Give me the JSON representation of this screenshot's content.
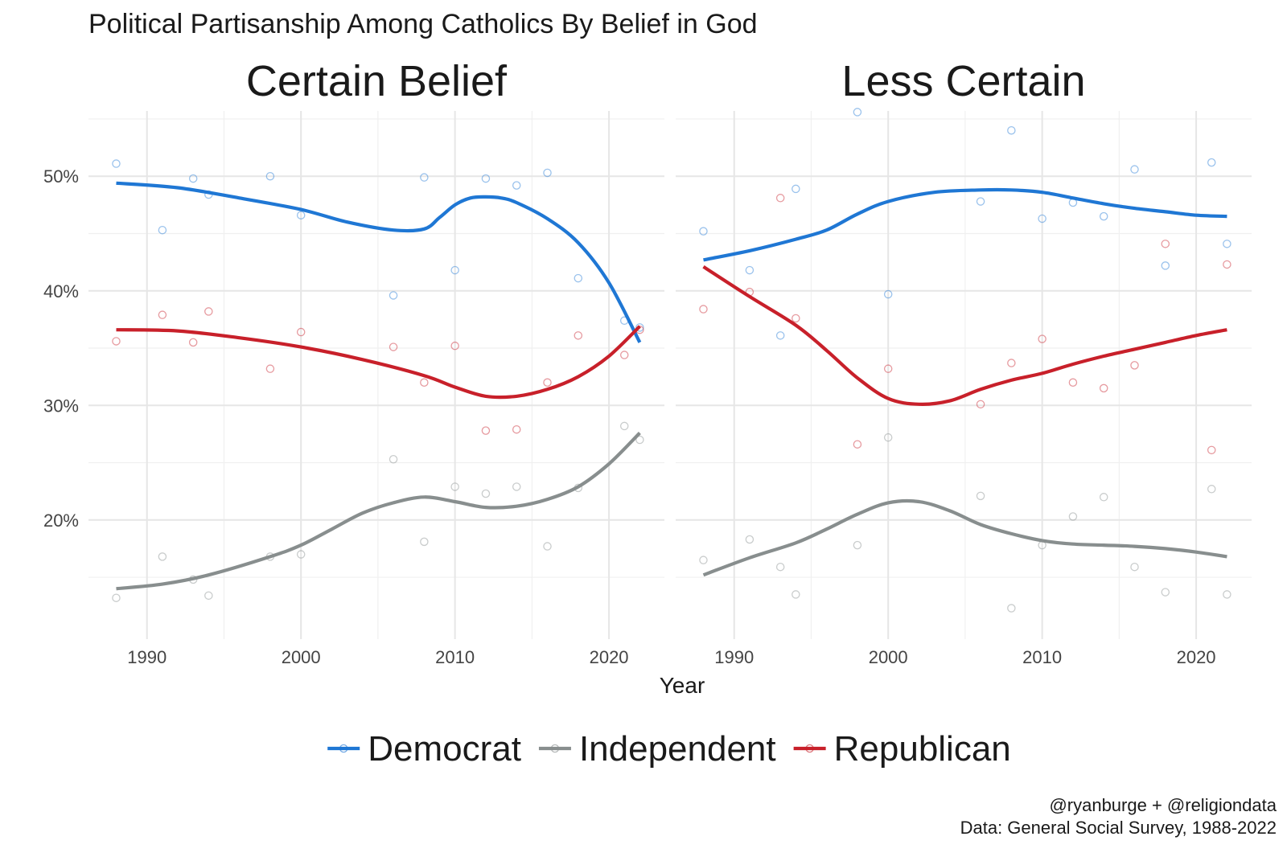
{
  "chart_data": {
    "type": "line",
    "title": "Political Partisanship Among Catholics By Belief in God",
    "xlabel": "Year",
    "ylabel": "",
    "xlim": [
      1986.2,
      2023.6
    ],
    "ylim": [
      9.6,
      55.7
    ],
    "x_ticks": [
      1990,
      2000,
      2010,
      2020
    ],
    "x_tick_labels": [
      "1990",
      "2000",
      "2010",
      "2020"
    ],
    "y_ticks": [
      20,
      30,
      40,
      50
    ],
    "y_tick_labels": [
      "20%",
      "30%",
      "40%",
      "50%"
    ],
    "legend": {
      "position": "bottom",
      "items": [
        {
          "name": "Democrat",
          "color": "#1f77d4"
        },
        {
          "name": "Independent",
          "color": "#888e8e"
        },
        {
          "name": "Republican",
          "color": "#c8202a"
        }
      ]
    },
    "caption": [
      "@ryanburge + @religiondata",
      "Data: General Social Survey, 1988-2022"
    ],
    "panels": [
      {
        "title": "Certain Belief",
        "series": [
          {
            "name": "Democrat",
            "color": "#1f77d4",
            "points": [
              [
                1988,
                51.1
              ],
              [
                1991,
                45.3
              ],
              [
                1993,
                49.8
              ],
              [
                1994,
                48.4
              ],
              [
                1998,
                50.0
              ],
              [
                2000,
                46.6
              ],
              [
                2006,
                39.6
              ],
              [
                2008,
                49.9
              ],
              [
                2010,
                41.8
              ],
              [
                2012,
                49.8
              ],
              [
                2014,
                49.2
              ],
              [
                2016,
                50.3
              ],
              [
                2018,
                41.1
              ],
              [
                2021,
                37.4
              ],
              [
                2022,
                36.8
              ]
            ],
            "trend": [
              [
                1988,
                49.4
              ],
              [
                1992,
                49.0
              ],
              [
                1996,
                48.1
              ],
              [
                2000,
                47.1
              ],
              [
                2003,
                46.0
              ],
              [
                2006,
                45.3
              ],
              [
                2008,
                45.4
              ],
              [
                2009,
                46.4
              ],
              [
                2010,
                47.5
              ],
              [
                2011,
                48.1
              ],
              [
                2012,
                48.2
              ],
              [
                2013,
                48.1
              ],
              [
                2014,
                47.7
              ],
              [
                2016,
                46.3
              ],
              [
                2018,
                44.2
              ],
              [
                2020,
                40.7
              ],
              [
                2022,
                35.5
              ]
            ]
          },
          {
            "name": "Republican",
            "color": "#c8202a",
            "points": [
              [
                1988,
                35.6
              ],
              [
                1991,
                37.9
              ],
              [
                1993,
                35.5
              ],
              [
                1994,
                38.2
              ],
              [
                1998,
                33.2
              ],
              [
                2000,
                36.4
              ],
              [
                2006,
                35.1
              ],
              [
                2008,
                32.0
              ],
              [
                2010,
                35.2
              ],
              [
                2012,
                27.8
              ],
              [
                2014,
                27.9
              ],
              [
                2016,
                32.0
              ],
              [
                2018,
                36.1
              ],
              [
                2021,
                34.4
              ],
              [
                2022,
                36.6
              ]
            ],
            "trend": [
              [
                1988,
                36.6
              ],
              [
                1992,
                36.5
              ],
              [
                1996,
                35.9
              ],
              [
                2000,
                35.1
              ],
              [
                2004,
                34.0
              ],
              [
                2008,
                32.6
              ],
              [
                2010,
                31.6
              ],
              [
                2012,
                30.8
              ],
              [
                2014,
                30.8
              ],
              [
                2016,
                31.4
              ],
              [
                2018,
                32.5
              ],
              [
                2020,
                34.3
              ],
              [
                2022,
                36.9
              ]
            ]
          },
          {
            "name": "Independent",
            "color": "#888e8e",
            "points": [
              [
                1988,
                13.2
              ],
              [
                1991,
                16.8
              ],
              [
                1993,
                14.8
              ],
              [
                1994,
                13.4
              ],
              [
                1998,
                16.8
              ],
              [
                2000,
                17.0
              ],
              [
                2006,
                25.3
              ],
              [
                2008,
                18.1
              ],
              [
                2010,
                22.9
              ],
              [
                2012,
                22.3
              ],
              [
                2014,
                22.9
              ],
              [
                2016,
                17.7
              ],
              [
                2018,
                22.8
              ],
              [
                2021,
                28.2
              ],
              [
                2022,
                27.0
              ]
            ],
            "trend": [
              [
                1988,
                14.0
              ],
              [
                1991,
                14.4
              ],
              [
                1994,
                15.2
              ],
              [
                1998,
                16.8
              ],
              [
                2000,
                17.8
              ],
              [
                2002,
                19.2
              ],
              [
                2004,
                20.6
              ],
              [
                2006,
                21.5
              ],
              [
                2008,
                22.0
              ],
              [
                2010,
                21.6
              ],
              [
                2012,
                21.1
              ],
              [
                2014,
                21.2
              ],
              [
                2016,
                21.8
              ],
              [
                2018,
                22.9
              ],
              [
                2020,
                24.9
              ],
              [
                2022,
                27.6
              ]
            ]
          }
        ]
      },
      {
        "title": "Less Certain",
        "series": [
          {
            "name": "Democrat",
            "color": "#1f77d4",
            "points": [
              [
                1988,
                45.2
              ],
              [
                1991,
                41.8
              ],
              [
                1993,
                36.1
              ],
              [
                1994,
                48.9
              ],
              [
                1998,
                55.6
              ],
              [
                2000,
                39.7
              ],
              [
                2006,
                47.8
              ],
              [
                2008,
                54.0
              ],
              [
                2010,
                46.3
              ],
              [
                2012,
                47.7
              ],
              [
                2014,
                46.5
              ],
              [
                2016,
                50.6
              ],
              [
                2018,
                42.2
              ],
              [
                2021,
                51.2
              ],
              [
                2022,
                44.1
              ]
            ],
            "trend": [
              [
                1988,
                42.7
              ],
              [
                1991,
                43.5
              ],
              [
                1994,
                44.5
              ],
              [
                1996,
                45.3
              ],
              [
                1998,
                46.7
              ],
              [
                2000,
                47.8
              ],
              [
                2003,
                48.6
              ],
              [
                2006,
                48.8
              ],
              [
                2008,
                48.8
              ],
              [
                2010,
                48.6
              ],
              [
                2012,
                48.1
              ],
              [
                2014,
                47.6
              ],
              [
                2016,
                47.2
              ],
              [
                2018,
                46.9
              ],
              [
                2020,
                46.6
              ],
              [
                2022,
                46.5
              ]
            ]
          },
          {
            "name": "Republican",
            "color": "#c8202a",
            "points": [
              [
                1988,
                38.4
              ],
              [
                1991,
                39.9
              ],
              [
                1993,
                48.1
              ],
              [
                1994,
                37.6
              ],
              [
                1998,
                26.6
              ],
              [
                2000,
                33.2
              ],
              [
                2006,
                30.1
              ],
              [
                2008,
                33.7
              ],
              [
                2010,
                35.8
              ],
              [
                2012,
                32.0
              ],
              [
                2014,
                31.5
              ],
              [
                2016,
                33.5
              ],
              [
                2018,
                44.1
              ],
              [
                2021,
                26.1
              ],
              [
                2022,
                42.3
              ]
            ],
            "trend": [
              [
                1988,
                42.1
              ],
              [
                1991,
                39.5
              ],
              [
                1994,
                37.0
              ],
              [
                1996,
                34.8
              ],
              [
                1998,
                32.4
              ],
              [
                2000,
                30.6
              ],
              [
                2002,
                30.1
              ],
              [
                2004,
                30.4
              ],
              [
                2006,
                31.4
              ],
              [
                2008,
                32.2
              ],
              [
                2010,
                32.8
              ],
              [
                2012,
                33.6
              ],
              [
                2014,
                34.3
              ],
              [
                2016,
                34.9
              ],
              [
                2018,
                35.5
              ],
              [
                2020,
                36.1
              ],
              [
                2022,
                36.6
              ]
            ]
          },
          {
            "name": "Independent",
            "color": "#888e8e",
            "points": [
              [
                1988,
                16.5
              ],
              [
                1991,
                18.3
              ],
              [
                1993,
                15.9
              ],
              [
                1994,
                13.5
              ],
              [
                1998,
                17.8
              ],
              [
                2000,
                27.2
              ],
              [
                2006,
                22.1
              ],
              [
                2008,
                12.3
              ],
              [
                2010,
                17.8
              ],
              [
                2012,
                20.3
              ],
              [
                2014,
                22.0
              ],
              [
                2016,
                15.9
              ],
              [
                2018,
                13.7
              ],
              [
                2021,
                22.7
              ],
              [
                2022,
                13.5
              ]
            ],
            "trend": [
              [
                1988,
                15.2
              ],
              [
                1991,
                16.7
              ],
              [
                1994,
                18.0
              ],
              [
                1996,
                19.2
              ],
              [
                1998,
                20.5
              ],
              [
                2000,
                21.5
              ],
              [
                2002,
                21.6
              ],
              [
                2004,
                20.8
              ],
              [
                2006,
                19.6
              ],
              [
                2008,
                18.8
              ],
              [
                2010,
                18.2
              ],
              [
                2012,
                17.9
              ],
              [
                2014,
                17.8
              ],
              [
                2016,
                17.7
              ],
              [
                2018,
                17.5
              ],
              [
                2020,
                17.2
              ],
              [
                2022,
                16.8
              ]
            ]
          }
        ]
      }
    ]
  }
}
